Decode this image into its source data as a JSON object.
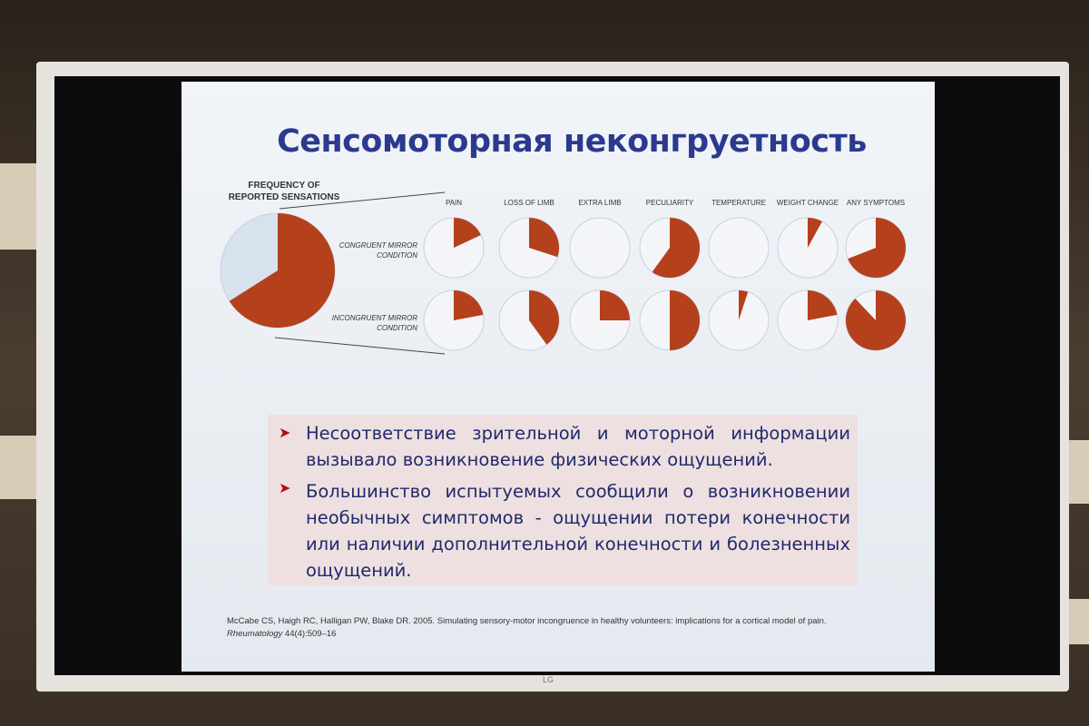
{
  "slide": {
    "title": "Сенсомоторная неконгруетность",
    "bullets": [
      "Несоответствие зрительной и моторной информации вызывало возникновение физических ощущений.",
      "Большинство испытуемых сообщили о возникновении необычных симптомов - ощущении потери конечности или наличии дополнительной конечности и болезненных ощущений."
    ],
    "reference": "McCabe CS, Haigh RC, Halligan PW, Blake DR. 2005. Simulating sensory-motor incongruence in healthy volunteers: implications for a cortical model of pain.",
    "reference_journal": "Rheumatology",
    "reference_tail": " 44(4):509–16"
  },
  "tv_brand": "LG",
  "colors": {
    "slice": "#b5401c",
    "background_slice": "#d6e2ee",
    "empty": "#f3f5f8",
    "title": "#2b3a8e"
  },
  "chart_data": {
    "type": "pie",
    "title": "FREQUENCY OF REPORTED SENSATIONS",
    "overall_fraction": 0.66,
    "categories": [
      "PAIN",
      "LOSS OF LIMB",
      "EXTRA LIMB",
      "PECULIARITY",
      "TEMPERATURE",
      "WEIGHT CHANGE",
      "ANY SYMPTOMS"
    ],
    "series": [
      {
        "name": "CONGRUENT MIRROR CONDITION",
        "values": [
          0.18,
          0.3,
          0,
          0.6,
          0,
          0.08,
          0.69
        ]
      },
      {
        "name": "INCONGRUENT MIRROR CONDITION",
        "values": [
          0.22,
          0.4,
          0.25,
          0.5,
          0.05,
          0.22,
          0.88
        ]
      }
    ]
  }
}
